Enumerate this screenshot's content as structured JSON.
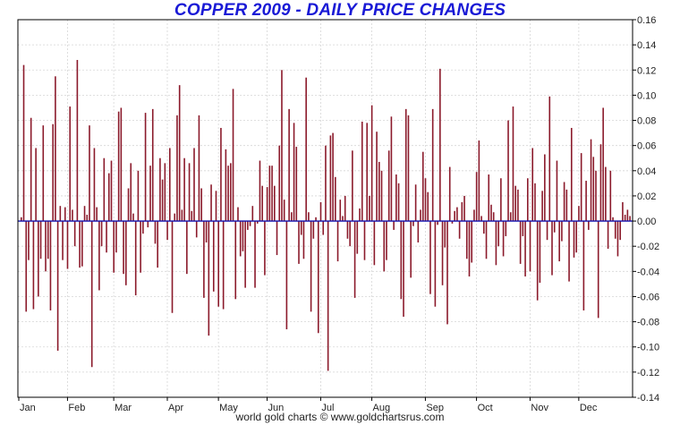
{
  "chart_data": {
    "type": "bar",
    "title": "COPPER 2009 - DAILY PRICE CHANGES",
    "xlabel": "",
    "ylabel": "",
    "ylim": [
      -0.14,
      0.16
    ],
    "yticks": [
      "0.16",
      "0.14",
      "0.12",
      "0.10",
      "0.08",
      "0.06",
      "0.04",
      "0.02",
      "0.00",
      "-0.02",
      "-0.04",
      "-0.06",
      "-0.08",
      "-0.10",
      "-0.12",
      "-0.14"
    ],
    "month_labels": [
      "Jan",
      "Feb",
      "Mar",
      "Apr",
      "May",
      "Jun",
      "Jul",
      "Aug",
      "Sep",
      "Oct",
      "Nov",
      "Dec"
    ],
    "month_start_index": [
      0,
      20,
      39,
      61,
      82,
      102,
      124,
      145,
      167,
      188,
      210,
      230
    ],
    "grid": true,
    "bar_color": "#8b1a2b",
    "zero_line_color": "#1010b0",
    "values": [
      0.003,
      0.124,
      -0.072,
      -0.031,
      0.082,
      -0.07,
      0.058,
      -0.06,
      -0.03,
      0.076,
      -0.04,
      -0.03,
      -0.071,
      0.077,
      0.115,
      -0.103,
      0.012,
      -0.031,
      0.011,
      -0.038,
      0.091,
      0.009,
      -0.02,
      0.128,
      -0.037,
      -0.036,
      0.012,
      0.005,
      0.076,
      -0.116,
      0.058,
      0.011,
      -0.055,
      -0.02,
      0.05,
      -0.025,
      0.038,
      0.048,
      -0.041,
      -0.025,
      0.087,
      0.09,
      -0.042,
      -0.051,
      0.026,
      0.046,
      0.006,
      -0.059,
      0.04,
      -0.041,
      -0.01,
      0.086,
      -0.005,
      0.044,
      0.089,
      -0.018,
      -0.037,
      0.05,
      0.033,
      0.046,
      -0.015,
      0.058,
      -0.073,
      0.006,
      0.084,
      0.108,
      0.009,
      0.05,
      -0.042,
      0.046,
      0.008,
      0.058,
      -0.013,
      0.084,
      0.026,
      -0.061,
      -0.017,
      -0.091,
      0.029,
      -0.056,
      0.024,
      -0.068,
      0.074,
      -0.07,
      0.057,
      0.044,
      0.046,
      0.105,
      -0.062,
      0.011,
      -0.028,
      -0.024,
      -0.053,
      -0.007,
      -0.004,
      0.012,
      -0.053,
      -0.002,
      0.048,
      0.028,
      -0.043,
      0.027,
      0.044,
      0.044,
      0.028,
      -0.027,
      0.06,
      0.12,
      0.017,
      -0.086,
      0.089,
      0.007,
      0.078,
      0.059,
      -0.034,
      -0.011,
      -0.03,
      0.114,
      0.007,
      -0.072,
      -0.014,
      0.003,
      -0.089,
      0.015,
      -0.011,
      0.06,
      -0.119,
      0.068,
      0.07,
      0.035,
      -0.032,
      0.017,
      0.004,
      0.02,
      -0.014,
      -0.02,
      0.056,
      -0.061,
      -0.026,
      0.01,
      0.079,
      -0.031,
      0.078,
      0.02,
      0.092,
      -0.035,
      0.071,
      0.047,
      0.04,
      -0.04,
      -0.031,
      0.056,
      0.083,
      -0.007,
      0.037,
      0.03,
      -0.062,
      -0.076,
      0.089,
      0.084,
      -0.045,
      -0.004,
      0.029,
      -0.017,
      0.009,
      0.055,
      0.034,
      0.023,
      -0.058,
      0.089,
      -0.068,
      -0.003,
      0.121,
      -0.051,
      -0.021,
      -0.082,
      0.043,
      -0.002,
      0.008,
      0.011,
      -0.014,
      0.015,
      0.02,
      -0.03,
      -0.044,
      -0.033,
      0.009,
      0.039,
      0.064,
      0.004,
      -0.01,
      -0.03,
      0.037,
      0.013,
      0.007,
      -0.035,
      -0.02,
      0.034,
      -0.028,
      -0.012,
      0.08,
      0.007,
      0.091,
      0.028,
      0.025,
      -0.034,
      -0.012,
      -0.044,
      0.034,
      -0.04,
      0.058,
      0.03,
      -0.063,
      -0.049,
      0.024,
      0.053,
      -0.015,
      0.099,
      -0.043,
      -0.009,
      0.048,
      -0.032,
      -0.016,
      0.031,
      0.025,
      -0.048,
      0.074,
      -0.029,
      -0.025,
      0.012,
      0.054,
      -0.071,
      0.032,
      -0.007,
      0.065,
      0.051,
      0.04,
      -0.077,
      0.061,
      0.09,
      0.043,
      -0.022,
      0.04,
      0.003,
      -0.014,
      -0.028,
      -0.015,
      0.015,
      0.005,
      0.009,
      0.004
    ]
  }
}
